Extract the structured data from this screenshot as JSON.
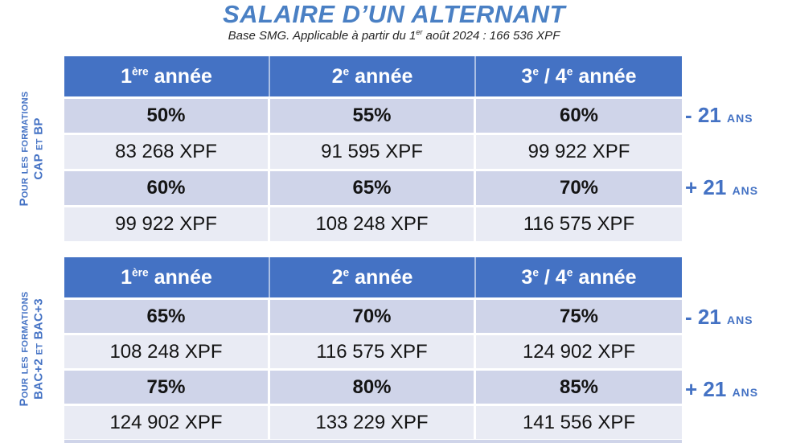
{
  "title": "SALAIRE D’UN ALTERNANT",
  "subtitle": {
    "pre": "Base SMG. Applicable à partir du 1",
    "sup": "er",
    "post": " août 2024 : 166 536 XPF"
  },
  "header": {
    "col1": {
      "n": "1",
      "o": "ère",
      "w": " année"
    },
    "col2": {
      "n": "2",
      "o": "e",
      "w": " année"
    },
    "col3": {
      "n1": "3",
      "o1": "e",
      "mid": " / 4",
      "o2": "e",
      "w": " année"
    }
  },
  "tables": [
    {
      "side_label": {
        "line1": "Pour les formations",
        "line2": "CAP et BP"
      },
      "rows": [
        [
          "50%",
          "55%",
          "60%"
        ],
        [
          "83 268 XPF",
          "91 595 XPF",
          "99 922 XPF"
        ],
        [
          "60%",
          "65%",
          "70%"
        ],
        [
          "99 922 XPF",
          "108 248 XPF",
          "116 575 XPF"
        ]
      ],
      "age_minus": {
        "num": "- 21",
        "unit": "ans"
      },
      "age_plus": {
        "num": "+ 21",
        "unit": "ans"
      }
    },
    {
      "side_label": {
        "line1": "Pour les formations",
        "line2": "BAC+2  et BAC+3"
      },
      "rows": [
        [
          "65%",
          "70%",
          "75%"
        ],
        [
          "108 248 XPF",
          "116 575 XPF",
          "124 902 XPF"
        ],
        [
          "75%",
          "80%",
          "85%"
        ],
        [
          "124 902 XPF",
          "133 229 XPF",
          "141 556 XPF"
        ]
      ],
      "age_minus": {
        "num": "- 21",
        "unit": "ans"
      },
      "age_plus": {
        "num": "+ 21",
        "unit": "ans"
      }
    }
  ],
  "colors": {
    "title_blue": "#4A80C4",
    "accent_blue": "#4472C4",
    "header_blue": "#4472C4",
    "row_dark": "#CFD4E9",
    "row_light": "#E9EBF4"
  }
}
